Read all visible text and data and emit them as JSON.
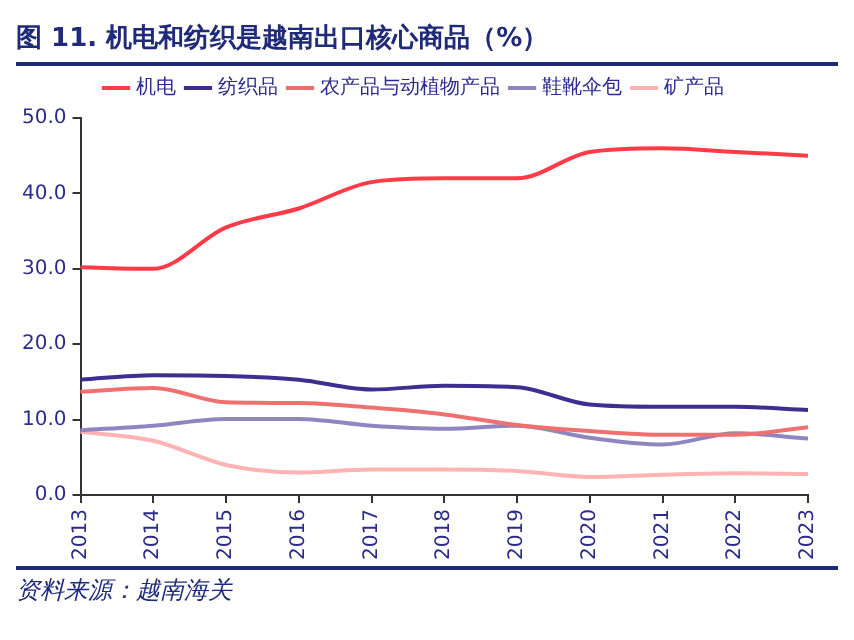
{
  "chart_data": {
    "type": "line",
    "title": "图 11. 机电和纺织是越南出口核心商品（%）",
    "annotations": [
      "资料来源：越南海关"
    ],
    "categories": [
      "2013",
      "2014",
      "2015",
      "2016",
      "2017",
      "2018",
      "2019",
      "2020",
      "2021",
      "2022",
      "2023"
    ],
    "series": [
      {
        "name": "机电",
        "color": "#ff3b47",
        "values": [
          30.2,
          30.0,
          35.5,
          38.0,
          41.5,
          42.0,
          42.0,
          45.5,
          46.0,
          45.5,
          45.0
        ]
      },
      {
        "name": "纺织品",
        "color": "#3b2f8f",
        "values": [
          15.3,
          15.9,
          15.8,
          15.3,
          14.0,
          14.5,
          14.3,
          12.0,
          11.7,
          11.7,
          11.3
        ]
      },
      {
        "name": "农产品与动植物产品",
        "color": "#f07070",
        "values": [
          13.7,
          14.2,
          12.3,
          12.2,
          11.6,
          10.7,
          9.3,
          8.5,
          8.0,
          8.0,
          9.0
        ]
      },
      {
        "name": "鞋靴伞包",
        "color": "#8f86c0",
        "values": [
          8.6,
          9.2,
          10.1,
          10.1,
          9.2,
          8.8,
          9.2,
          7.6,
          6.7,
          8.2,
          7.5
        ]
      },
      {
        "name": "矿产品",
        "color": "#ffb3b3",
        "values": [
          8.4,
          7.2,
          4.0,
          3.0,
          3.4,
          3.4,
          3.2,
          2.4,
          2.7,
          2.9,
          2.8
        ]
      }
    ],
    "ylim": [
      0,
      50
    ],
    "yticks": [
      {
        "value": 0,
        "label": "0.0"
      },
      {
        "value": 10,
        "label": "10.0"
      },
      {
        "value": 20,
        "label": "20.0"
      },
      {
        "value": 30,
        "label": "30.0"
      },
      {
        "value": 40,
        "label": "40.0"
      },
      {
        "value": 50,
        "label": "50.0"
      }
    ],
    "grid": false,
    "legend": "top",
    "marker": "none",
    "line_style": "solid"
  }
}
